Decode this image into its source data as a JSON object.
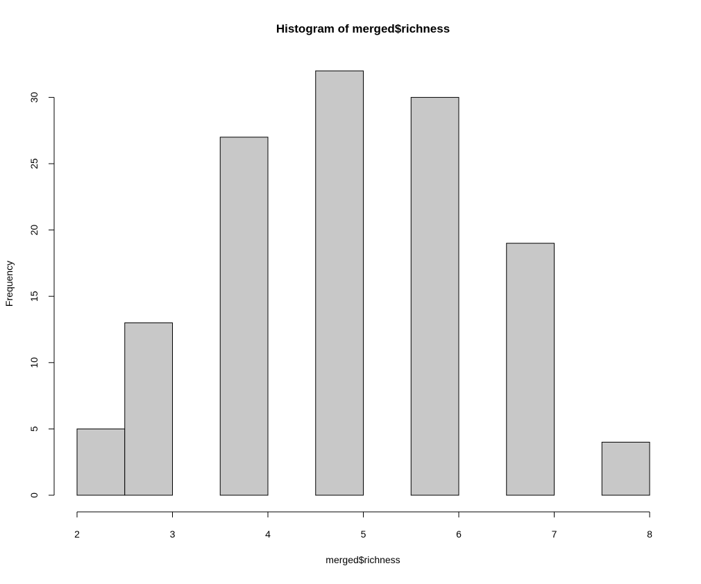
{
  "chart_data": {
    "type": "bar",
    "subtype": "histogram",
    "title": "Histogram of merged$richness",
    "xlabel": "merged$richness",
    "ylabel": "Frequency",
    "bins": [
      {
        "start": 2.0,
        "end": 2.5,
        "count": 5
      },
      {
        "start": 2.5,
        "end": 3.0,
        "count": 13
      },
      {
        "start": 3.0,
        "end": 3.5,
        "count": 0
      },
      {
        "start": 3.5,
        "end": 4.0,
        "count": 27
      },
      {
        "start": 4.0,
        "end": 4.5,
        "count": 0
      },
      {
        "start": 4.5,
        "end": 5.0,
        "count": 32
      },
      {
        "start": 5.0,
        "end": 5.5,
        "count": 0
      },
      {
        "start": 5.5,
        "end": 6.0,
        "count": 30
      },
      {
        "start": 6.0,
        "end": 6.5,
        "count": 0
      },
      {
        "start": 6.5,
        "end": 7.0,
        "count": 19
      },
      {
        "start": 7.0,
        "end": 7.5,
        "count": 0
      },
      {
        "start": 7.5,
        "end": 8.0,
        "count": 4
      }
    ],
    "xlim": [
      2,
      8
    ],
    "ylim": [
      0,
      32
    ],
    "xticks": [
      2,
      3,
      4,
      5,
      6,
      7,
      8
    ],
    "yticks": [
      0,
      5,
      10,
      15,
      20,
      25,
      30
    ],
    "bar_fill": "#c8c8c8",
    "bar_stroke": "#000000",
    "grid": false,
    "legend": "none"
  }
}
